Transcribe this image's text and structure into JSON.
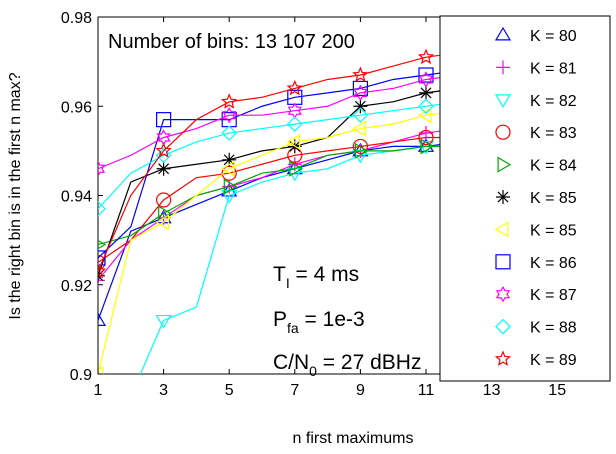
{
  "chart_data": {
    "type": "line",
    "title": "",
    "xlabel": "n first maximums",
    "ylabel": "Is the right bin is in the first n max?",
    "xlim": [
      1,
      16
    ],
    "ylim": [
      0.9,
      0.98
    ],
    "xticks": [
      "1",
      "3",
      "5",
      "7",
      "9",
      "11",
      "13",
      "15"
    ],
    "yticks": [
      "0.9",
      "0.92",
      "0.94",
      "0.96",
      "0.98"
    ],
    "grid": false,
    "legend_position": "right",
    "x": [
      1,
      2,
      3,
      4,
      5,
      6,
      7,
      8,
      9,
      10,
      11,
      12
    ],
    "annotations": {
      "bins": "Number of bins: 13 107 200",
      "tl_main": "T",
      "tl_sub": "I",
      "tl_rest": " = 4 ms",
      "pfa_main": "P",
      "pfa_sub": "fa",
      "pfa_rest": " = 1e-3",
      "cn0_main": "C/N",
      "cn0_sub": "0",
      "cn0_rest": " = 27 dBHz"
    },
    "series": [
      {
        "name": "K = 80",
        "color": "#0000ff",
        "marker": "triangle-up",
        "values": [
          0.912,
          0.932,
          0.935,
          0.938,
          0.941,
          0.944,
          0.946,
          0.948,
          0.95,
          0.951,
          0.951,
          0.952
        ]
      },
      {
        "name": "K = 81",
        "color": "#ff00ff",
        "marker": "plus",
        "values": [
          0.921,
          0.93,
          0.935,
          0.94,
          0.942,
          0.944,
          0.947,
          0.949,
          0.95,
          0.952,
          0.954,
          0.955
        ]
      },
      {
        "name": "K = 82",
        "color": "#00ffff",
        "marker": "triangle-down",
        "values": [
          0.88,
          0.895,
          0.912,
          0.915,
          0.94,
          0.943,
          0.945,
          0.946,
          0.949,
          0.95,
          0.951,
          0.951
        ]
      },
      {
        "name": "K = 83",
        "color": "#ff0000",
        "marker": "circle",
        "values": [
          0.925,
          0.93,
          0.939,
          0.944,
          0.945,
          0.947,
          0.949,
          0.95,
          0.951,
          0.952,
          0.953,
          0.953
        ]
      },
      {
        "name": "K = 84",
        "color": "#00aa00",
        "marker": "triangle-right",
        "values": [
          0.929,
          0.931,
          0.936,
          0.94,
          0.942,
          0.945,
          0.946,
          0.949,
          0.95,
          0.95,
          0.951,
          0.951
        ]
      },
      {
        "name": "K = 85",
        "color": "#000000",
        "marker": "star",
        "values": [
          0.922,
          0.943,
          0.946,
          0.947,
          0.948,
          0.95,
          0.951,
          0.953,
          0.96,
          0.961,
          0.963,
          0.964
        ]
      },
      {
        "name": "K = 85",
        "color": "#ffff00",
        "marker": "triangle-left",
        "values": [
          0.9,
          0.93,
          0.934,
          0.94,
          0.946,
          0.949,
          0.952,
          0.953,
          0.955,
          0.956,
          0.958,
          0.959
        ]
      },
      {
        "name": "K = 86",
        "color": "#0000ff",
        "marker": "square",
        "values": [
          0.926,
          0.933,
          0.957,
          0.957,
          0.957,
          0.96,
          0.962,
          0.963,
          0.964,
          0.966,
          0.967,
          0.968
        ]
      },
      {
        "name": "K = 87",
        "color": "#ff00ff",
        "marker": "hexagram",
        "values": [
          0.946,
          0.949,
          0.953,
          0.955,
          0.958,
          0.958,
          0.959,
          0.96,
          0.963,
          0.964,
          0.966,
          0.967
        ]
      },
      {
        "name": "K = 88",
        "color": "#00ffff",
        "marker": "diamond",
        "values": [
          0.937,
          0.945,
          0.949,
          0.952,
          0.954,
          0.955,
          0.956,
          0.957,
          0.958,
          0.959,
          0.96,
          0.961
        ]
      },
      {
        "name": "K = 89",
        "color": "#ff0000",
        "marker": "pentagram",
        "values": [
          0.923,
          0.94,
          0.95,
          0.957,
          0.961,
          0.962,
          0.964,
          0.966,
          0.967,
          0.969,
          0.971,
          0.972
        ]
      }
    ]
  }
}
